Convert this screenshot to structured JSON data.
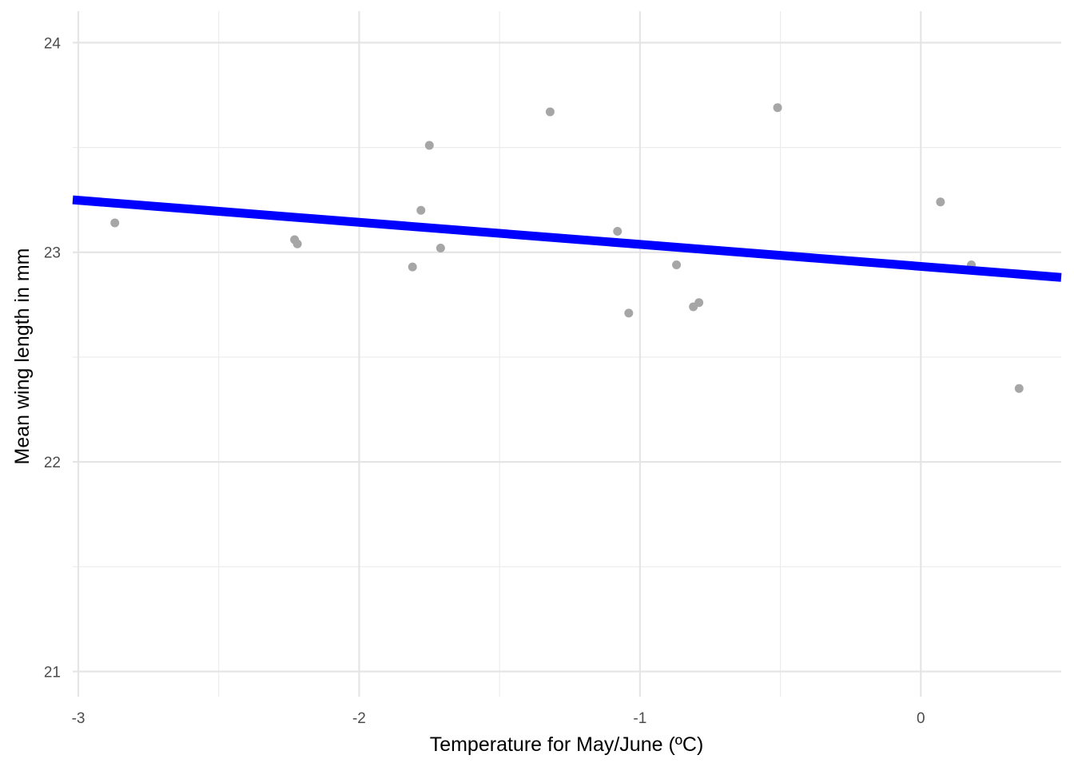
{
  "chart_data": {
    "type": "scatter",
    "title": "",
    "xlabel": "Temperature for May/June (ºC)",
    "ylabel": "Mean wing length in mm",
    "xlim": [
      -3.02,
      0.5
    ],
    "ylim": [
      20.88,
      24.15
    ],
    "x_ticks": [
      -3,
      -2,
      -1,
      0
    ],
    "x_tick_labels": [
      "-3",
      "-2",
      "-1",
      "0"
    ],
    "y_ticks": [
      21,
      22,
      23,
      24
    ],
    "y_tick_labels": [
      "21",
      "22",
      "23",
      "24"
    ],
    "x_minor_ticks": [
      -2.5,
      -1.5,
      -0.5
    ],
    "y_minor_ticks": [
      21.5,
      22.5,
      23.5
    ],
    "grid": true,
    "points": {
      "color": "#a6a6a6",
      "x": [
        -2.87,
        -2.23,
        -2.22,
        -1.81,
        -1.78,
        -1.75,
        -1.71,
        -1.32,
        -1.08,
        -1.04,
        -0.87,
        -0.81,
        -0.79,
        -0.51,
        0.07,
        0.18,
        0.35
      ],
      "y": [
        23.14,
        23.06,
        23.04,
        22.93,
        23.2,
        23.51,
        23.02,
        23.67,
        23.1,
        22.71,
        22.94,
        22.74,
        22.76,
        23.69,
        23.24,
        22.94,
        22.35
      ]
    },
    "trend_line": {
      "color": "#0000ff",
      "x": [
        -3.02,
        0.5
      ],
      "y": [
        23.25,
        22.88
      ]
    }
  }
}
